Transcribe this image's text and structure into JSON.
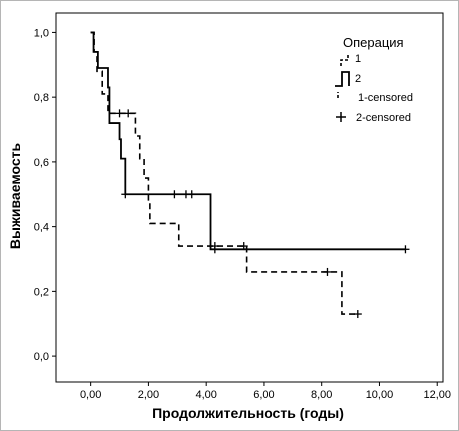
{
  "chart_data": {
    "type": "line",
    "subtype": "kaplan-meier step",
    "xlabel": "Продолжительность (годы)",
    "ylabel": "Выживаемость",
    "xlim": [
      -1.2,
      12.2
    ],
    "ylim": [
      -0.08,
      1.06
    ],
    "x_ticks": [
      0,
      2,
      4,
      6,
      8,
      10,
      12
    ],
    "x_tick_labels": [
      "0,00",
      "2,00",
      "4,00",
      "6,00",
      "8,00",
      "10,00",
      "12,00"
    ],
    "y_ticks": [
      0,
      0.2,
      0.4,
      0.6,
      0.8,
      1.0
    ],
    "y_tick_labels": [
      "0,0",
      "0,2",
      "0,4",
      "0,6",
      "0,8",
      "1,0"
    ],
    "grid": false,
    "legend": {
      "title": "Операция",
      "position": "top-right",
      "entries": [
        "1",
        "2",
        "1-censored",
        "2-censored"
      ]
    },
    "series": [
      {
        "name": "1",
        "style": "dashed",
        "steps": [
          [
            0.0,
            1.0
          ],
          [
            0.12,
            0.94
          ],
          [
            0.22,
            0.88
          ],
          [
            0.4,
            0.81
          ],
          [
            0.6,
            0.75
          ],
          [
            1.55,
            0.68
          ],
          [
            1.7,
            0.61
          ],
          [
            1.85,
            0.55
          ],
          [
            2.0,
            0.48
          ],
          [
            2.05,
            0.41
          ],
          [
            3.05,
            0.34
          ],
          [
            5.4,
            0.26
          ],
          [
            8.7,
            0.13
          ],
          [
            9.25,
            0.13
          ]
        ],
        "censored_markers": [
          [
            1.0,
            0.75
          ],
          [
            1.3,
            0.75
          ],
          [
            4.3,
            0.34
          ],
          [
            5.3,
            0.34
          ],
          [
            8.2,
            0.26
          ],
          [
            9.25,
            0.13
          ]
        ]
      },
      {
        "name": "2",
        "style": "solid",
        "steps": [
          [
            0.0,
            1.0
          ],
          [
            0.1,
            0.94
          ],
          [
            0.25,
            0.89
          ],
          [
            0.6,
            0.83
          ],
          [
            0.65,
            0.72
          ],
          [
            1.0,
            0.67
          ],
          [
            1.05,
            0.61
          ],
          [
            1.2,
            0.5
          ],
          [
            4.15,
            0.33
          ],
          [
            10.9,
            0.33
          ]
        ],
        "censored_markers": [
          [
            1.2,
            0.5
          ],
          [
            2.9,
            0.5
          ],
          [
            3.3,
            0.5
          ],
          [
            3.5,
            0.5
          ],
          [
            4.3,
            0.33
          ],
          [
            10.9,
            0.33
          ]
        ]
      }
    ]
  }
}
